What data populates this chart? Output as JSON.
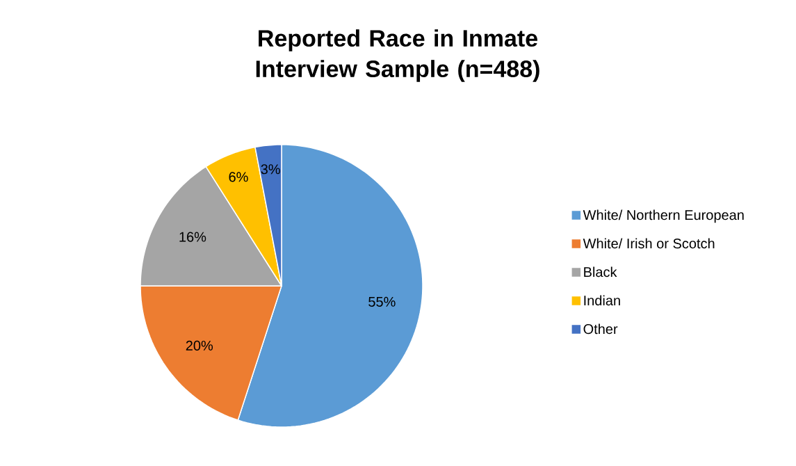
{
  "chart_data": {
    "type": "pie",
    "title": "Reported Race in Inmate Interview Sample (n=488)",
    "categories": [
      "White/ Northern European",
      "White/ Irish or Scotch",
      "Black",
      "Indian",
      "Other"
    ],
    "values": [
      55,
      20,
      16,
      6,
      3
    ],
    "value_labels": [
      "55%",
      "20%",
      "16%",
      "6%",
      "3%"
    ],
    "colors": [
      "#5b9bd5",
      "#ed7d31",
      "#a5a5a5",
      "#ffc000",
      "#4472c4"
    ],
    "legend": "right"
  }
}
